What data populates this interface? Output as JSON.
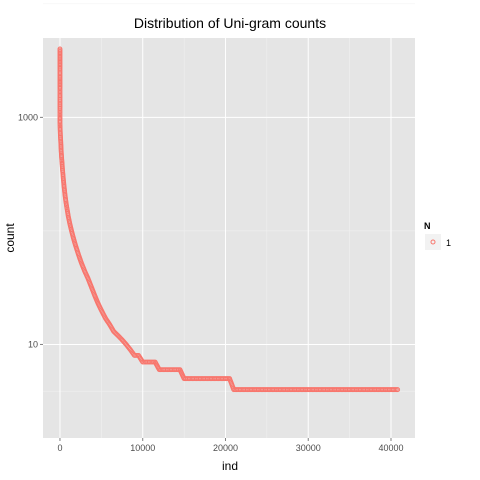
{
  "chart_data": {
    "type": "scatter",
    "title": "Distribution of Uni-gram counts",
    "xlabel": "ind",
    "ylabel": "count",
    "x_ticks": [
      0,
      10000,
      20000,
      30000,
      40000
    ],
    "x_tick_labels": [
      "0",
      "10000",
      "20000",
      "30000",
      "40000"
    ],
    "y_scale": "log10",
    "y_ticks": [
      10,
      1000
    ],
    "y_tick_labels": [
      "10",
      "1000"
    ],
    "xlim": [
      -2050,
      42900
    ],
    "ylim": [
      1.5,
      5000
    ],
    "grid": true,
    "legend": {
      "title": "N",
      "entries": [
        "1"
      ],
      "position": "right"
    },
    "series": [
      {
        "name": "1",
        "color": "#F8766D",
        "x": [
          0,
          0,
          0,
          0,
          0,
          0,
          0,
          0,
          0,
          0,
          20,
          50,
          100,
          150,
          200,
          250,
          300,
          400,
          500,
          600,
          700,
          800,
          900,
          1000,
          1200,
          1400,
          1600,
          1800,
          2000,
          2300,
          2600,
          3000,
          3400,
          3800,
          4200,
          4600,
          5000,
          5500,
          6000,
          6500,
          7000,
          7500,
          8000,
          8500,
          9000,
          9500,
          10000,
          10500,
          11000,
          11500,
          12000,
          12500,
          13000,
          13500,
          14000,
          14500,
          15000,
          15500,
          16000,
          16500,
          17000,
          17500,
          18000,
          18500,
          19000,
          19500,
          20000,
          20500,
          21000,
          22000,
          23000,
          24000,
          25000,
          26000,
          27000,
          28000,
          29000,
          30000,
          31000,
          32000,
          33000,
          34000,
          35000,
          36000,
          37000,
          38000,
          39000,
          40000,
          40800
        ],
        "y": [
          4000,
          2700,
          2300,
          1800,
          1600,
          1400,
          1200,
          1100,
          1000,
          900,
          800,
          700,
          600,
          500,
          440,
          400,
          350,
          290,
          245,
          210,
          185,
          165,
          150,
          135,
          115,
          100,
          88,
          78,
          70,
          60,
          52,
          44,
          38,
          32,
          27,
          23,
          20,
          17,
          15,
          13,
          12,
          11,
          10,
          9,
          8,
          8,
          7,
          7,
          7,
          7,
          6,
          6,
          6,
          6,
          6,
          6,
          5,
          5,
          5,
          5,
          5,
          5,
          5,
          5,
          5,
          5,
          5,
          5,
          4,
          4,
          4,
          4,
          4,
          4,
          4,
          4,
          4,
          4,
          4,
          4,
          4,
          4,
          4,
          4,
          4,
          4,
          4,
          4,
          4
        ]
      }
    ]
  }
}
